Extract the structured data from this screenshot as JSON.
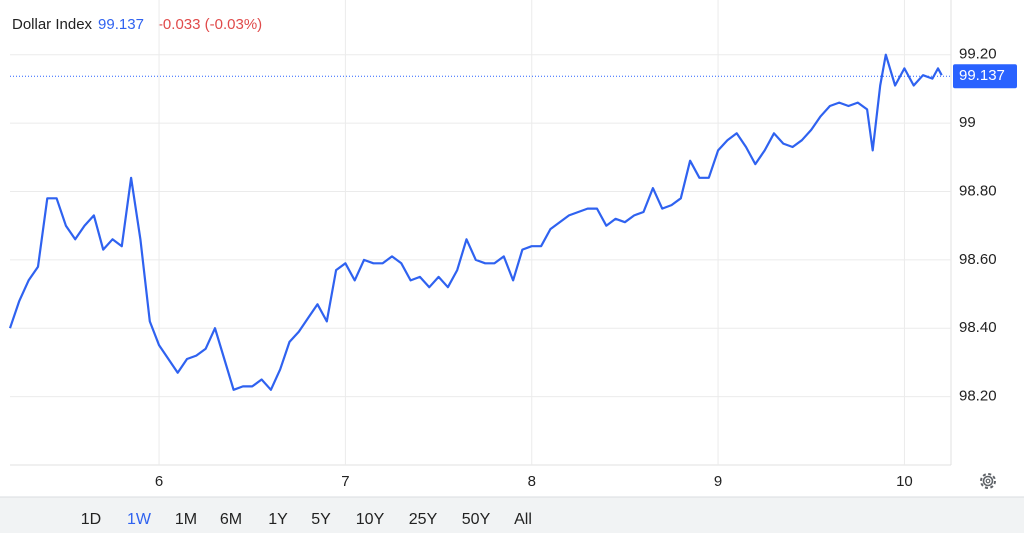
{
  "chart_data": {
    "type": "line",
    "title": "Dollar Index",
    "change": "-0.033 (-0.03%)",
    "last_price": {
      "value": 99.137,
      "label": "99.137"
    },
    "xlim": [
      5.2,
      10.25
    ],
    "xticks": [
      6,
      7,
      8,
      9,
      10
    ],
    "ylim": [
      98.0,
      99.36
    ],
    "yticks": [
      {
        "value": 98.2,
        "label": "98.20"
      },
      {
        "value": 98.4,
        "label": "98.40"
      },
      {
        "value": 98.6,
        "label": "98.60"
      },
      {
        "value": 98.8,
        "label": "98.80"
      },
      99,
      {
        "value": 99.2,
        "label": "99.20"
      }
    ],
    "grid": true,
    "series": [
      {
        "color": "#2f62f0",
        "x": [
          5.2,
          5.25,
          5.3,
          5.35,
          5.4,
          5.45,
          5.5,
          5.55,
          5.6,
          5.65,
          5.7,
          5.75,
          5.8,
          5.85,
          5.9,
          5.95,
          6.0,
          6.05,
          6.1,
          6.15,
          6.2,
          6.25,
          6.3,
          6.35,
          6.4,
          6.45,
          6.5,
          6.55,
          6.6,
          6.65,
          6.7,
          6.75,
          6.8,
          6.85,
          6.9,
          6.95,
          7.0,
          7.05,
          7.1,
          7.15,
          7.2,
          7.25,
          7.3,
          7.35,
          7.4,
          7.45,
          7.5,
          7.55,
          7.6,
          7.65,
          7.7,
          7.75,
          7.8,
          7.85,
          7.9,
          7.95,
          8.0,
          8.05,
          8.1,
          8.15,
          8.2,
          8.25,
          8.3,
          8.35,
          8.4,
          8.45,
          8.5,
          8.55,
          8.6,
          8.65,
          8.7,
          8.75,
          8.8,
          8.85,
          8.9,
          8.95,
          9.0,
          9.05,
          9.1,
          9.15,
          9.2,
          9.25,
          9.3,
          9.35,
          9.4,
          9.45,
          9.5,
          9.55,
          9.6,
          9.65,
          9.7,
          9.75,
          9.8,
          9.83,
          9.87,
          9.9,
          9.95,
          10.0,
          10.05,
          10.1,
          10.15,
          10.18,
          10.2
        ],
        "values": [
          98.4,
          98.48,
          98.54,
          98.58,
          98.78,
          98.78,
          98.7,
          98.66,
          98.7,
          98.73,
          98.63,
          98.66,
          98.64,
          98.84,
          98.66,
          98.42,
          98.35,
          98.31,
          98.27,
          98.31,
          98.32,
          98.34,
          98.4,
          98.31,
          98.22,
          98.23,
          98.23,
          98.25,
          98.22,
          98.28,
          98.36,
          98.39,
          98.43,
          98.47,
          98.42,
          98.57,
          98.59,
          98.54,
          98.6,
          98.59,
          98.59,
          98.61,
          98.59,
          98.54,
          98.55,
          98.52,
          98.55,
          98.52,
          98.57,
          98.66,
          98.6,
          98.59,
          98.59,
          98.61,
          98.54,
          98.63,
          98.64,
          98.64,
          98.69,
          98.71,
          98.73,
          98.74,
          98.75,
          98.75,
          98.7,
          98.72,
          98.71,
          98.73,
          98.74,
          98.81,
          98.75,
          98.76,
          98.78,
          98.89,
          98.84,
          98.84,
          98.92,
          98.95,
          98.97,
          98.93,
          98.88,
          98.92,
          98.97,
          98.94,
          98.93,
          98.95,
          98.98,
          99.02,
          99.05,
          99.06,
          99.05,
          99.06,
          99.04,
          98.92,
          99.11,
          99.2,
          99.11,
          99.16,
          99.11,
          99.14,
          99.13,
          99.16,
          99.14
        ]
      }
    ]
  },
  "range_buttons": [
    "1D",
    "1W",
    "1M",
    "6M",
    "1Y",
    "5Y",
    "10Y",
    "25Y",
    "50Y",
    "All"
  ],
  "selected_range": "1W"
}
